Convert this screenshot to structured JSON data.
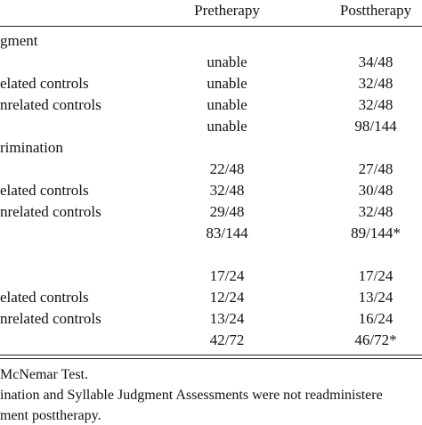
{
  "table": {
    "header": [
      "Pretherapy",
      "Posttherapy"
    ],
    "rows": [
      {
        "label": "gment"
      },
      {
        "pre": "unable",
        "post": "34/48"
      },
      {
        "label": "elated controls",
        "pre": "unable",
        "post": "32/48"
      },
      {
        "label": "nrelated controls",
        "pre": "unable",
        "post": "32/48"
      },
      {
        "pre": "unable",
        "post": "98/144"
      },
      {
        "label": "rimination"
      },
      {
        "pre": "22/48",
        "post": "27/48"
      },
      {
        "label": "elated controls",
        "pre": "32/48",
        "post": "30/48"
      },
      {
        "label": "nrelated controls",
        "pre": "29/48",
        "post": "32/48"
      },
      {
        "pre": "83/144",
        "post": "89/144*"
      },
      {},
      {
        "pre": "17/24",
        "post": "17/24"
      },
      {
        "label": "elated controls",
        "pre": "12/24",
        "post": "13/24"
      },
      {
        "label": "nrelated controls",
        "pre": "13/24",
        "post": "16/24"
      },
      {
        "pre": "42/72",
        "post": "46/72*"
      }
    ],
    "notes": [
      "McNemar Test.",
      "ination and Syllable Judgment Assessments were not readministere",
      "ment posttherapy."
    ]
  }
}
